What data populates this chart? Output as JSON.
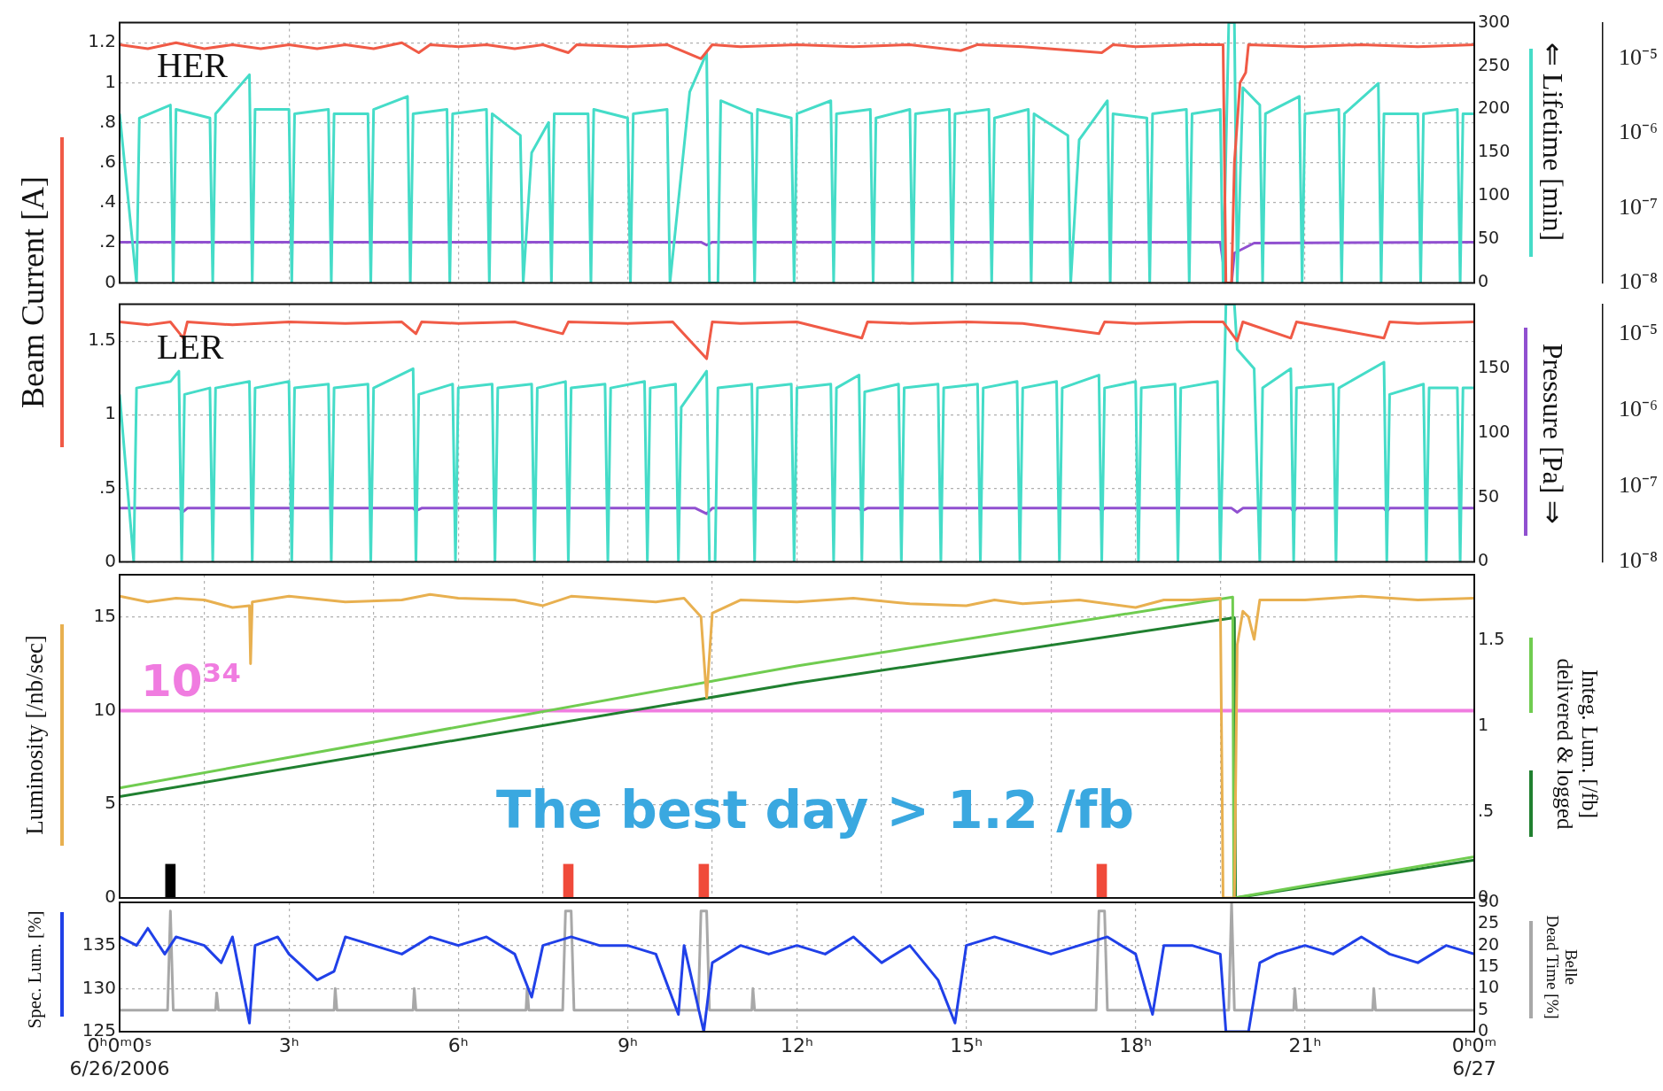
{
  "chart_data": [
    {
      "type": "line",
      "title": "HER",
      "ylabel": "Beam Current [A]",
      "y2label": "⇐ Lifetime [min]",
      "xlim": [
        0,
        24
      ],
      "xticks": [
        0,
        3,
        6,
        9,
        12,
        15,
        18,
        21,
        24
      ],
      "ylim": [
        0,
        1.3
      ],
      "yticks": [
        0,
        {
          "value": 0.2,
          "label": ".2"
        },
        {
          "value": 0.4,
          "label": ".4"
        },
        {
          "value": 0.6,
          "label": ".6"
        },
        {
          "value": 0.8,
          "label": ".8"
        },
        1,
        1.2
      ],
      "y2lim": [
        0,
        300
      ],
      "y2ticks": [
        0,
        50,
        100,
        150,
        200,
        250,
        300
      ],
      "y3lim": [
        1e-08,
        3e-05
      ],
      "y3ticks": [
        {
          "value": 1e-08,
          "label": "10⁻⁸"
        },
        {
          "value": 1e-07,
          "label": "10⁻⁷"
        },
        {
          "value": 1e-06,
          "label": "10⁻⁶"
        },
        {
          "value": 1e-05,
          "label": "10⁻⁵"
        }
      ],
      "log": "y3",
      "grid": true,
      "legend": false,
      "tick_labels": "y",
      "series": [
        {
          "color": "#f05a46",
          "axis": "y",
          "x": [
            0,
            0.5,
            1,
            1.5,
            2,
            2.5,
            3,
            3.5,
            4,
            4.5,
            5,
            5.3,
            5.5,
            6,
            6.5,
            7,
            7.5,
            7.95,
            8.1,
            9,
            9.7,
            10.3,
            10.5,
            11,
            12,
            13,
            14,
            14.9,
            15.2,
            16,
            17.4,
            17.6,
            18,
            19,
            19.55,
            19.6,
            19.7,
            19.75,
            19.8,
            19.85,
            19.95,
            20,
            21,
            22,
            23,
            24
          ],
          "values": [
            1.19,
            1.17,
            1.2,
            1.17,
            1.19,
            1.17,
            1.19,
            1.17,
            1.19,
            1.17,
            1.2,
            1.15,
            1.19,
            1.18,
            1.19,
            1.17,
            1.19,
            1.15,
            1.19,
            1.18,
            1.19,
            1.12,
            1.19,
            1.18,
            1.19,
            1.18,
            1.19,
            1.16,
            1.19,
            1.18,
            1.15,
            1.19,
            1.18,
            1.19,
            1.19,
            0,
            0,
            0.6,
            0.8,
            1.0,
            1.05,
            1.19,
            1.18,
            1.19,
            1.18,
            1.19
          ]
        },
        {
          "color": "#45dcc8",
          "axis": "y2",
          "x": [
            0,
            0.3,
            0.35,
            0.9,
            0.95,
            1,
            1.6,
            1.65,
            1.7,
            2.3,
            2.35,
            2.4,
            3,
            3.05,
            3.1,
            3.7,
            3.75,
            3.8,
            4.4,
            4.45,
            4.5,
            5.1,
            5.15,
            5.2,
            5.8,
            5.85,
            5.9,
            6.5,
            6.55,
            6.6,
            7.1,
            7.15,
            7.3,
            7.6,
            7.65,
            7.7,
            8.3,
            8.35,
            8.4,
            9,
            9.05,
            9.1,
            9.7,
            9.75,
            10.1,
            10.4,
            10.45,
            10.6,
            10.65,
            11.2,
            11.25,
            11.3,
            11.9,
            11.95,
            12,
            12.6,
            12.65,
            12.7,
            13.3,
            13.35,
            13.4,
            14,
            14.05,
            14.1,
            14.7,
            14.75,
            14.8,
            15.4,
            15.45,
            15.5,
            16.1,
            16.15,
            16.2,
            16.8,
            16.85,
            17,
            17.5,
            17.55,
            17.6,
            18.2,
            18.25,
            18.3,
            18.9,
            18.95,
            19,
            19.5,
            19.55,
            19.65,
            19.75,
            19.8,
            19.9,
            20.2,
            20.25,
            20.3,
            20.9,
            20.95,
            21,
            21.6,
            21.65,
            21.7,
            22.3,
            22.35,
            22.4,
            23,
            23.05,
            23.1,
            23.7,
            23.75,
            23.8,
            24
          ],
          "values": [
            195,
            0,
            190,
            205,
            0,
            200,
            190,
            0,
            195,
            240,
            0,
            200,
            200,
            0,
            195,
            200,
            0,
            195,
            195,
            0,
            200,
            215,
            0,
            195,
            200,
            0,
            195,
            200,
            0,
            195,
            170,
            0,
            150,
            185,
            0,
            195,
            195,
            0,
            200,
            190,
            0,
            195,
            200,
            0,
            220,
            265,
            0,
            0,
            210,
            195,
            0,
            200,
            190,
            0,
            195,
            210,
            0,
            195,
            200,
            0,
            190,
            200,
            0,
            195,
            200,
            0,
            195,
            200,
            0,
            190,
            200,
            0,
            195,
            170,
            0,
            165,
            210,
            0,
            195,
            190,
            0,
            195,
            200,
            0,
            195,
            200,
            0,
            300,
            300,
            0,
            225,
            205,
            0,
            195,
            215,
            0,
            195,
            200,
            0,
            195,
            230,
            0,
            195,
            195,
            0,
            195,
            200,
            0,
            195,
            195
          ]
        },
        {
          "color": "#9050d0",
          "axis": "y3",
          "x": [
            0,
            10.3,
            10.4,
            10.5,
            19.5,
            19.6,
            19.7,
            19.75,
            20.1,
            24
          ],
          "values": [
            3.5e-08,
            3.5e-08,
            3.2e-08,
            3.5e-08,
            3.5e-08,
            1e-08,
            1e-08,
            2.5e-08,
            3.4e-08,
            3.5e-08
          ]
        }
      ]
    },
    {
      "type": "line",
      "title": "LER",
      "y3label": "Pressure [Pa] ⇒",
      "xlim": [
        0,
        24
      ],
      "xticks": [
        0,
        3,
        6,
        9,
        12,
        15,
        18,
        21,
        24
      ],
      "ylim": [
        0,
        1.75
      ],
      "yticks": [
        0,
        {
          "value": 0.5,
          "label": ".5"
        },
        1,
        1.5
      ],
      "y2lim": [
        0,
        200
      ],
      "y2ticks": [
        0,
        50,
        100,
        150
      ],
      "y3lim": [
        1e-08,
        2.5e-05
      ],
      "y3ticks": [
        {
          "value": 1e-08,
          "label": "10⁻⁸"
        },
        {
          "value": 1e-07,
          "label": "10⁻⁷"
        },
        {
          "value": 1e-06,
          "label": "10⁻⁶"
        },
        {
          "value": 1e-05,
          "label": "10⁻⁵"
        }
      ],
      "log": "y3",
      "grid": true,
      "legend": false,
      "tick_labels": "y",
      "series": [
        {
          "color": "#f05a46",
          "axis": "y",
          "x": [
            0,
            0.5,
            0.9,
            1.13,
            1.2,
            2,
            3,
            4,
            5,
            5.25,
            5.35,
            6,
            7,
            7.85,
            7.95,
            9,
            9.8,
            10.4,
            10.5,
            11,
            12,
            13.15,
            13.25,
            14,
            15,
            16,
            17.35,
            17.45,
            18,
            19,
            19.55,
            19.8,
            19.9,
            20.75,
            20.85,
            22.4,
            22.5,
            23,
            24
          ],
          "values": [
            1.63,
            1.61,
            1.63,
            1.52,
            1.63,
            1.61,
            1.63,
            1.62,
            1.63,
            1.55,
            1.63,
            1.62,
            1.63,
            1.55,
            1.63,
            1.62,
            1.63,
            1.38,
            1.63,
            1.62,
            1.63,
            1.52,
            1.63,
            1.62,
            1.63,
            1.62,
            1.55,
            1.63,
            1.62,
            1.63,
            1.63,
            1.5,
            1.63,
            1.52,
            1.63,
            1.52,
            1.63,
            1.62,
            1.63
          ]
        },
        {
          "color": "#45dcc8",
          "axis": "y2",
          "x": [
            0,
            0.25,
            0.3,
            0.9,
            1.05,
            1.1,
            1.15,
            1.6,
            1.65,
            1.7,
            2.3,
            2.35,
            2.4,
            3,
            3.05,
            3.1,
            3.7,
            3.75,
            3.8,
            4.4,
            4.45,
            4.5,
            5.2,
            5.25,
            5.3,
            5.9,
            5.95,
            6,
            6.6,
            6.65,
            6.7,
            7.3,
            7.35,
            7.4,
            7.9,
            7.95,
            8,
            8.6,
            8.65,
            8.7,
            9.3,
            9.35,
            9.4,
            9.85,
            9.9,
            9.95,
            10.4,
            10.45,
            10.55,
            10.6,
            11.2,
            11.25,
            11.3,
            11.9,
            11.95,
            12,
            12.6,
            12.65,
            12.7,
            13.1,
            13.15,
            13.2,
            13.8,
            13.85,
            13.9,
            14.5,
            14.55,
            14.6,
            15.2,
            15.25,
            15.3,
            15.9,
            15.95,
            16,
            16.6,
            16.65,
            16.7,
            17.35,
            17.4,
            17.45,
            18,
            18.05,
            18.1,
            18.7,
            18.75,
            18.8,
            19.45,
            19.5,
            19.6,
            19.75,
            19.8,
            20.1,
            20.2,
            20.25,
            20.75,
            20.8,
            20.85,
            21.5,
            21.55,
            21.6,
            22.4,
            22.45,
            22.5,
            23.1,
            23.15,
            23.2,
            23.7,
            23.75,
            23.8,
            24
          ],
          "values": [
            130,
            0,
            135,
            140,
            148,
            0,
            130,
            135,
            0,
            135,
            140,
            0,
            135,
            140,
            0,
            135,
            138,
            0,
            135,
            138,
            0,
            135,
            150,
            0,
            130,
            138,
            0,
            135,
            138,
            0,
            135,
            138,
            0,
            135,
            140,
            0,
            135,
            138,
            0,
            135,
            140,
            0,
            135,
            138,
            0,
            120,
            148,
            0,
            0,
            135,
            138,
            0,
            135,
            138,
            0,
            135,
            138,
            0,
            135,
            145,
            0,
            132,
            138,
            0,
            135,
            138,
            0,
            135,
            138,
            0,
            135,
            140,
            0,
            135,
            140,
            0,
            135,
            145,
            0,
            135,
            140,
            0,
            135,
            138,
            0,
            135,
            140,
            0,
            200,
            200,
            165,
            150,
            0,
            135,
            150,
            0,
            135,
            138,
            0,
            135,
            155,
            0,
            130,
            138,
            0,
            135,
            135,
            0,
            135,
            135
          ]
        },
        {
          "color": "#9050d0",
          "axis": "y3",
          "x": [
            0,
            1.05,
            1.13,
            1.2,
            5.2,
            5.25,
            5.35,
            10.2,
            10.4,
            10.5,
            13.1,
            13.15,
            13.25,
            17.35,
            17.4,
            17.45,
            19.7,
            19.8,
            19.9,
            20.75,
            20.8,
            20.85,
            22.4,
            22.45,
            22.5,
            24
          ],
          "values": [
            5.1e-08,
            5.1e-08,
            4.6e-08,
            5.1e-08,
            5.1e-08,
            4.7e-08,
            5.1e-08,
            5.1e-08,
            4.3e-08,
            5.1e-08,
            5.1e-08,
            4.7e-08,
            5.1e-08,
            5.1e-08,
            4.7e-08,
            5.1e-08,
            5.1e-08,
            4.5e-08,
            5.1e-08,
            5.1e-08,
            4.6e-08,
            5.1e-08,
            5.1e-08,
            4.6e-08,
            5.1e-08,
            5.1e-08
          ]
        }
      ]
    },
    {
      "type": "line",
      "ylabel": "Luminosity [/nb/sec]",
      "y2label": "Integ. Lum. [/fb]\ndelivered & logged",
      "xlim": [
        0,
        24
      ],
      "xticks": [
        0,
        3,
        6,
        9,
        12,
        15,
        18,
        21,
        24
      ],
      "ylim": [
        0,
        17.25
      ],
      "yticks": [
        0,
        5,
        10,
        15
      ],
      "y2lim": [
        0,
        1.88
      ],
      "y2ticks": [
        0,
        {
          "value": 0.5,
          "label": ".5"
        },
        1,
        1.5
      ],
      "grid": true,
      "legend": false,
      "tick_labels": "y",
      "ref_lines": [
        {
          "axis": "y",
          "value": 10,
          "label": "10³⁴",
          "color": "#f07ce0"
        }
      ],
      "annotations": [
        "The best day > 1.2 /fb"
      ],
      "series": [
        {
          "color": "#e8b050",
          "axis": "y",
          "x": [
            0,
            0.5,
            1,
            1.5,
            2,
            2.3,
            2.32,
            2.35,
            3,
            4,
            5,
            5.5,
            6,
            7,
            7.5,
            8,
            9,
            9.5,
            10,
            10.3,
            10.4,
            10.5,
            11,
            12,
            13,
            14,
            15,
            15.5,
            16,
            17,
            18,
            18.5,
            19,
            19.5,
            19.55,
            19.75,
            19.8,
            19.9,
            20,
            20.1,
            20.2,
            21,
            22,
            23,
            24
          ],
          "values": [
            16.1,
            15.8,
            16,
            15.9,
            15.5,
            15.6,
            12.5,
            15.8,
            16.1,
            15.8,
            15.9,
            16.2,
            16,
            15.9,
            15.6,
            16.1,
            15.9,
            15.8,
            16,
            15,
            10.7,
            15.2,
            15.9,
            15.8,
            16,
            15.7,
            15.6,
            15.9,
            15.7,
            15.9,
            15.5,
            15.9,
            15.9,
            16,
            0,
            0,
            13.5,
            15.3,
            15,
            13.8,
            15.9,
            15.9,
            16.1,
            15.9,
            16
          ]
        },
        {
          "color": "#70cc50",
          "axis": "y2",
          "x": [
            0,
            12,
            19.72,
            19.74,
            24
          ],
          "values": [
            0.64,
            1.35,
            1.75,
            0,
            0.24
          ]
        },
        {
          "color": "#208030",
          "axis": "y2",
          "x": [
            0,
            12,
            19.75,
            19.77,
            24
          ],
          "values": [
            0.59,
            1.25,
            1.63,
            0,
            0.22
          ]
        },
        {
          "type": "bar",
          "axis": "y",
          "colors": [
            "#000000",
            "#f04a3a",
            "#f04a3a",
            "#f04a3a"
          ],
          "x": [
            0.9,
            7.95,
            10.35,
            17.4
          ],
          "values": [
            1.8,
            1.8,
            1.8,
            1.8
          ]
        }
      ]
    },
    {
      "type": "line",
      "ylabel": "Spec. Lum. [%]",
      "y2label": "Belle\nDead Time [%]",
      "xlim": [
        0,
        24
      ],
      "xticks": [
        {
          "value": 0,
          "label": "0ʰ0ᵐ0ˢ\n6/26/2006"
        },
        {
          "value": 3,
          "label": "3ʰ"
        },
        {
          "value": 6,
          "label": "6ʰ"
        },
        {
          "value": 9,
          "label": "9ʰ"
        },
        {
          "value": 12,
          "label": "12ʰ"
        },
        {
          "value": 15,
          "label": "15ʰ"
        },
        {
          "value": 18,
          "label": "18ʰ"
        },
        {
          "value": 21,
          "label": "21ʰ"
        },
        {
          "value": 24,
          "label": "0ʰ0ᵐ\n6/27"
        }
      ],
      "ylim": [
        125,
        140
      ],
      "yticks": [
        125,
        130,
        135
      ],
      "y2lim": [
        0,
        30
      ],
      "y2ticks": [
        0,
        5,
        10,
        15,
        20,
        25,
        30
      ],
      "grid": true,
      "legend": false,
      "series": [
        {
          "color": "#2040e8",
          "axis": "y",
          "x": [
            0,
            0.3,
            0.5,
            0.8,
            1,
            1.5,
            1.8,
            2,
            2.3,
            2.4,
            2.8,
            3,
            3.5,
            3.8,
            4,
            4.5,
            5,
            5.5,
            6,
            6.5,
            7,
            7.3,
            7.5,
            8,
            8.5,
            9,
            9.5,
            9.9,
            10,
            10.35,
            10.5,
            11,
            11.5,
            12,
            12.5,
            13,
            13.5,
            14,
            14.5,
            14.8,
            15,
            15.5,
            16,
            16.5,
            17,
            17.5,
            18,
            18.3,
            18.5,
            19,
            19.5,
            19.6,
            20,
            20.2,
            20.5,
            21,
            21.5,
            22,
            22.5,
            23,
            23.5,
            24
          ],
          "values": [
            136,
            135,
            137,
            134,
            136,
            135,
            133,
            136,
            126,
            135,
            136,
            134,
            131,
            132,
            136,
            135,
            134,
            136,
            135,
            136,
            134,
            129,
            135,
            136,
            135,
            135,
            134,
            127,
            135,
            125,
            133,
            135,
            134,
            135,
            134,
            136,
            133,
            135,
            131,
            126,
            135,
            136,
            135,
            134,
            135,
            136,
            134,
            127,
            135,
            135,
            134,
            125,
            125,
            133,
            134,
            135,
            134,
            136,
            134,
            133,
            135,
            134
          ]
        },
        {
          "color": "#a8a8a8",
          "axis": "y2",
          "x": [
            0,
            0.85,
            0.9,
            0.95,
            1.7,
            1.72,
            1.75,
            3.8,
            3.82,
            3.85,
            5.2,
            5.22,
            5.25,
            7.2,
            7.22,
            7.25,
            7.85,
            7.9,
            8,
            8.05,
            10.25,
            10.3,
            10.4,
            10.45,
            11.2,
            11.22,
            11.25,
            17.3,
            17.35,
            17.45,
            17.5,
            19.65,
            19.7,
            19.75,
            20.8,
            20.82,
            20.85,
            22.2,
            22.22,
            22.25,
            24
          ],
          "values": [
            5,
            5,
            28,
            5,
            5,
            9,
            5,
            5,
            10,
            5,
            5,
            10,
            5,
            5,
            10,
            5,
            5,
            28,
            28,
            5,
            5,
            28,
            28,
            5,
            5,
            10,
            5,
            5,
            28,
            28,
            5,
            5,
            30,
            5,
            5,
            10,
            5,
            5,
            10,
            5,
            5
          ]
        }
      ]
    }
  ]
}
